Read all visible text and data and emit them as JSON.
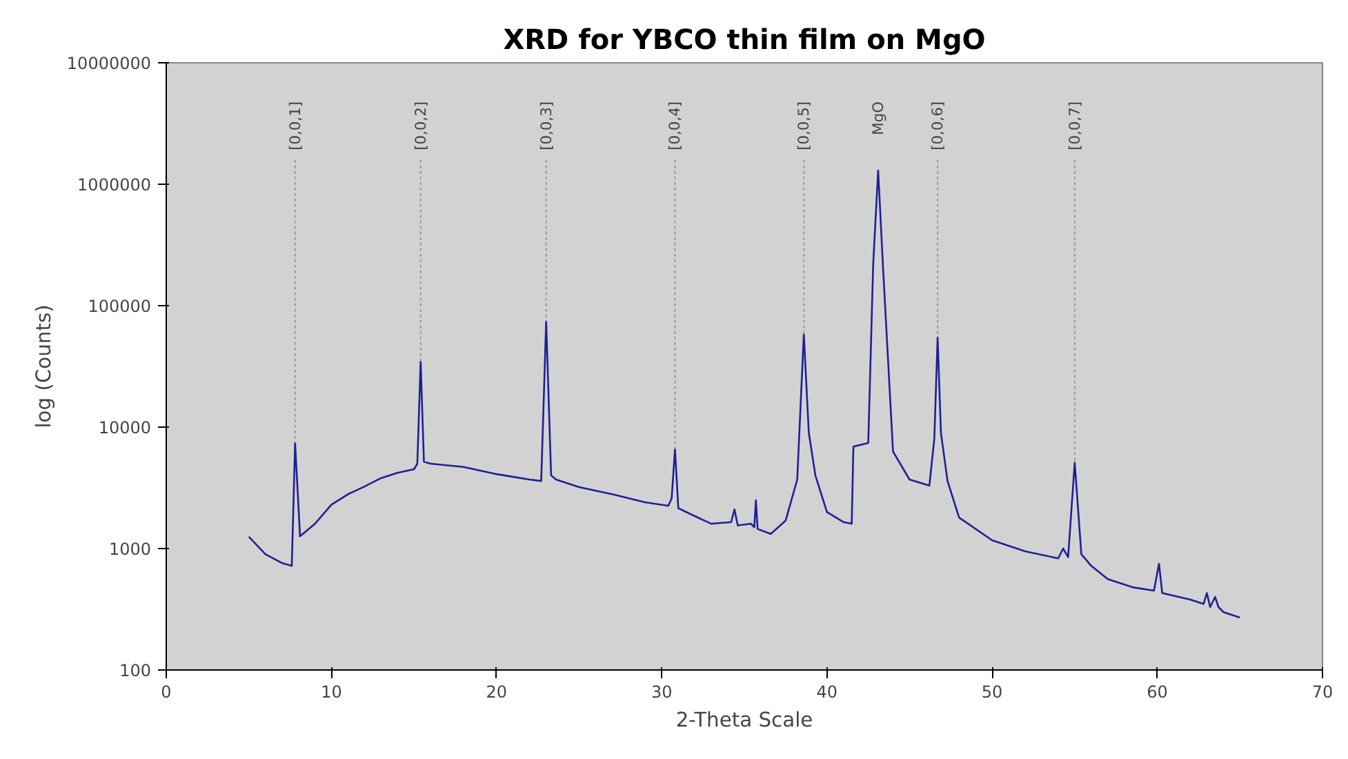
{
  "chart_data": {
    "type": "line",
    "title": "XRD for YBCO thin film on MgO",
    "xlabel": "2-Theta Scale",
    "ylabel": "log (Counts)",
    "log": "y",
    "grid": false,
    "marker": "none",
    "line_style": "solid",
    "xlim": [
      0,
      70
    ],
    "xticks": [
      0,
      10,
      20,
      30,
      40,
      50,
      60,
      70
    ],
    "ylim": [
      100,
      10000000
    ],
    "yticks": [
      100,
      1000,
      10000,
      100000,
      1000000,
      10000000
    ],
    "series": [
      {
        "color": "#1f1f96",
        "x": [
          5,
          6,
          7,
          7.6,
          7.8,
          8.1,
          9,
          10,
          11,
          12,
          13,
          14,
          15,
          15.2,
          15.4,
          15.6,
          16,
          18,
          20,
          22,
          22.7,
          23.0,
          23.3,
          23.6,
          25,
          27,
          29,
          30.4,
          30.6,
          30.8,
          31,
          32,
          33,
          34.2,
          34.4,
          34.6,
          35.4,
          35.6,
          35.7,
          35.8,
          36.6,
          37.5,
          38.2,
          38.6,
          38.9,
          39.3,
          40,
          41,
          41.5,
          41.6,
          42.5,
          42.8,
          43.1,
          43.4,
          44,
          45,
          46.2,
          46.5,
          46.7,
          46.9,
          47.3,
          48,
          50,
          52,
          54,
          54.3,
          54.6,
          55.0,
          55.4,
          56,
          57,
          58.5,
          59.8,
          60.1,
          60.3,
          62,
          62.8,
          63,
          63.2,
          63.5,
          63.7,
          64,
          65
        ],
        "values": [
          1250,
          900,
          760,
          720,
          7400,
          1260,
          1600,
          2300,
          2800,
          3240,
          3800,
          4200,
          4500,
          5000,
          34600,
          5200,
          5000,
          4700,
          4100,
          3700,
          3600,
          74000,
          4000,
          3700,
          3200,
          2800,
          2400,
          2250,
          2600,
          6600,
          2150,
          1850,
          1600,
          1650,
          2100,
          1550,
          1600,
          1500,
          2500,
          1450,
          1320,
          1700,
          3700,
          58000,
          9000,
          4000,
          2000,
          1650,
          1600,
          6900,
          7400,
          220000,
          1300000,
          200000,
          6300,
          3700,
          3300,
          8000,
          55000,
          9000,
          3600,
          1800,
          1170,
          950,
          830,
          1000,
          850,
          5100,
          900,
          720,
          560,
          480,
          450,
          750,
          430,
          380,
          350,
          430,
          330,
          400,
          330,
          300,
          270
        ]
      }
    ],
    "annotations": [
      {
        "text": "[0,0,1]",
        "x": 7.8,
        "y": 7400
      },
      {
        "text": "[0,0,2]",
        "x": 15.4,
        "y": 34600
      },
      {
        "text": "[0,0,3]",
        "x": 23.0,
        "y": 74000
      },
      {
        "text": "[0,0,4]",
        "x": 30.8,
        "y": 6600
      },
      {
        "text": "[0,0,5]",
        "x": 38.6,
        "y": 58000
      },
      {
        "text": "MgO",
        "x": 43.1,
        "y": 1300000
      },
      {
        "text": "[0,0,6]",
        "x": 46.7,
        "y": 55000
      },
      {
        "text": "[0,0,7]",
        "x": 55.0,
        "y": 5100
      }
    ]
  }
}
